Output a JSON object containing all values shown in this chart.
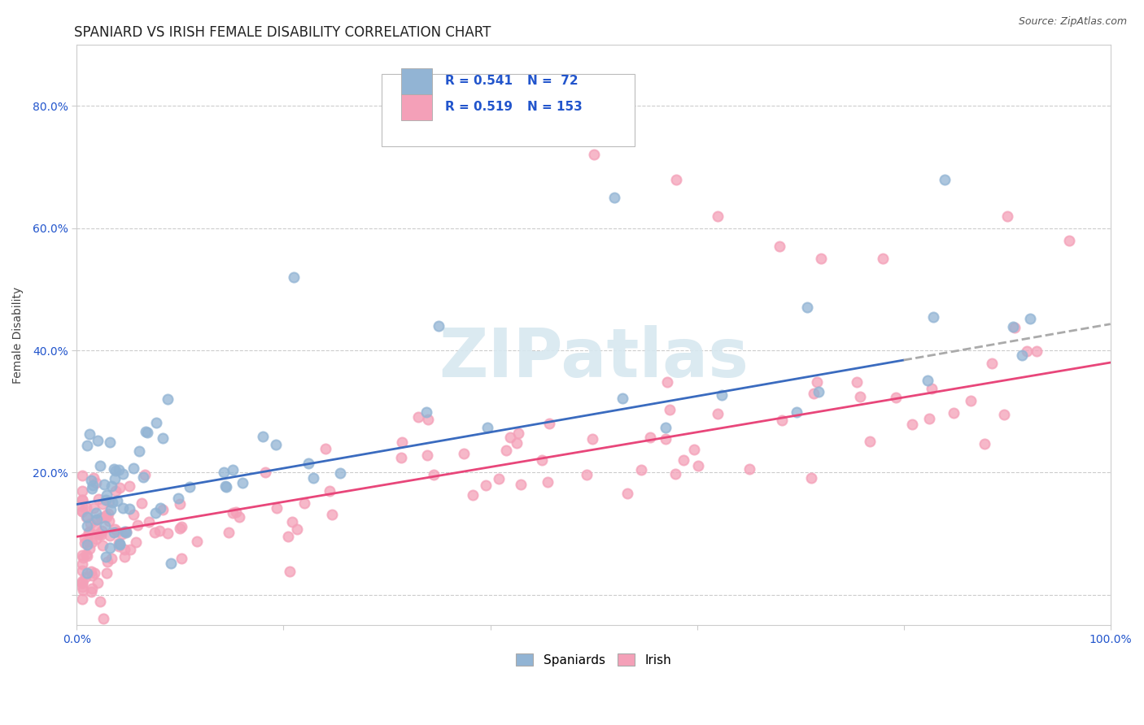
{
  "title": "SPANIARD VS IRISH FEMALE DISABILITY CORRELATION CHART",
  "source_text": "Source: ZipAtlas.com",
  "ylabel": "Female Disability",
  "xlim": [
    0.0,
    1.0
  ],
  "ylim": [
    -0.05,
    0.9
  ],
  "ytick_vals": [
    0.0,
    0.2,
    0.4,
    0.6,
    0.8
  ],
  "ytick_labels": [
    "",
    "20.0%",
    "40.0%",
    "60.0%",
    "80.0%"
  ],
  "xtick_vals": [
    0.0,
    0.2,
    0.4,
    0.6,
    0.8,
    1.0
  ],
  "xtick_labels": [
    "0.0%",
    "",
    "",
    "",
    "",
    "100.0%"
  ],
  "spaniard_color": "#92b4d4",
  "irish_color": "#f4a0b8",
  "spaniard_line_color": "#3a6bbf",
  "irish_line_color": "#e8467a",
  "trend_extend_color": "#aaaaaa",
  "R_spaniard": 0.541,
  "N_spaniard": 72,
  "R_irish": 0.519,
  "N_irish": 153,
  "legend_R_color": "#2255cc",
  "watermark": "ZIPatlas",
  "background_color": "#ffffff",
  "grid_color": "#cccccc",
  "title_fontsize": 12,
  "axis_label_fontsize": 10,
  "tick_fontsize": 10,
  "spaniard_slope": 0.295,
  "spaniard_intercept": 0.148,
  "irish_slope": 0.285,
  "irish_intercept": 0.095,
  "spaniard_line_end": 0.8,
  "irish_line_end": 1.0
}
